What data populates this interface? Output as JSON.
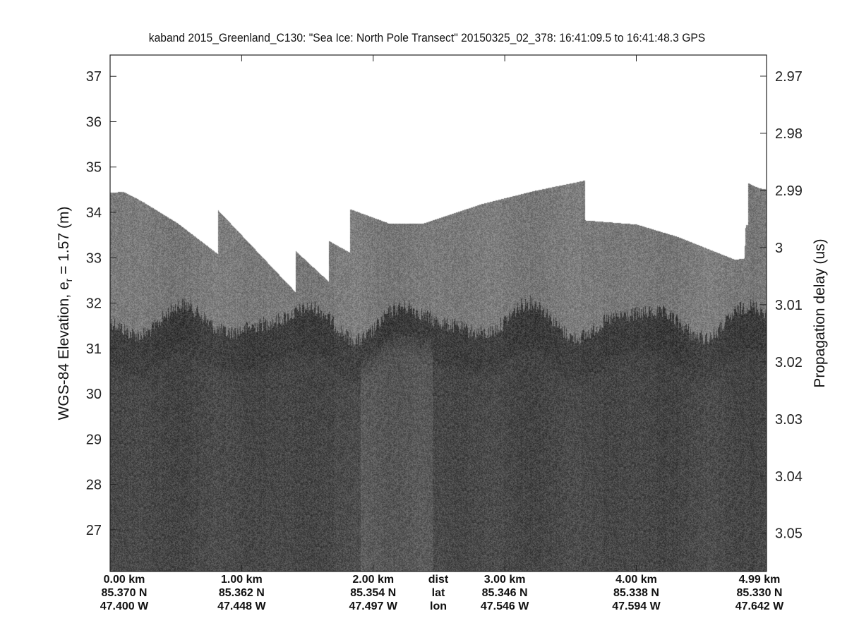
{
  "chart_data": {
    "type": "heatmap",
    "title": "kaband 2015_Greenland_C130: \"Sea Ice: North Pole Transect\"  20150325_02_378: 16:41:09.5 to 16:41:48.3 GPS",
    "ylabel_prefix": "WGS-84 Elevation, e",
    "ylabel_sub": "r",
    "ylabel_suffix": " = 1.57 (m)",
    "y2label": "Propagation delay (us)",
    "colormap": "gray",
    "xlim_km": [
      0,
      4.99
    ],
    "ylim": [
      26.08,
      37.47
    ],
    "yticks": [
      27,
      28,
      29,
      30,
      31,
      32,
      33,
      34,
      35,
      36,
      37
    ],
    "y2ticks": [
      "2.97",
      "2.98",
      "2.99",
      "3",
      "3.01",
      "3.02",
      "3.03",
      "3.04",
      "3.05"
    ],
    "y2tick_values": [
      2.97,
      2.98,
      2.99,
      3.0,
      3.01,
      3.02,
      3.03,
      3.04,
      3.05
    ],
    "y2lim": [
      2.9663,
      3.0567
    ],
    "x_labels": [
      {
        "km": 0.0,
        "dist": "0.00 km",
        "lat": "85.370 N",
        "lon": "47.400 W"
      },
      {
        "km": 1.0,
        "dist": "1.00 km",
        "lat": "85.362 N",
        "lon": "47.448 W"
      },
      {
        "km": 2.0,
        "dist": "2.00 km",
        "lat": "85.354 N",
        "lon": "47.497 W"
      },
      {
        "km": 3.0,
        "dist": "3.00 km",
        "lat": "85.346 N",
        "lon": "47.546 W"
      },
      {
        "km": 4.0,
        "dist": "4.00 km",
        "lat": "85.338 N",
        "lon": "47.594 W"
      },
      {
        "km": 4.99,
        "dist": "4.99 km",
        "lat": "85.330 N",
        "lon": "47.642 W"
      }
    ],
    "row_labels": {
      "dist": "dist",
      "lat": "lat",
      "lon": "lon"
    },
    "top_surface": [
      [
        0.0,
        34.44
      ],
      [
        0.1,
        34.46
      ],
      [
        0.24,
        34.25
      ],
      [
        0.51,
        33.77
      ],
      [
        0.82,
        33.08
      ],
      [
        0.82,
        34.05
      ],
      [
        1.41,
        32.24
      ],
      [
        1.41,
        33.15
      ],
      [
        1.66,
        32.48
      ],
      [
        1.66,
        33.38
      ],
      [
        1.82,
        33.12
      ],
      [
        1.82,
        34.08
      ],
      [
        2.12,
        33.76
      ],
      [
        2.38,
        33.76
      ],
      [
        2.81,
        34.18
      ],
      [
        3.24,
        34.49
      ],
      [
        3.61,
        34.71
      ],
      [
        3.61,
        33.83
      ],
      [
        4.0,
        33.74
      ],
      [
        4.32,
        33.46
      ],
      [
        4.75,
        32.96
      ],
      [
        4.82,
        32.99
      ],
      [
        4.83,
        33.73
      ],
      [
        4.85,
        33.73
      ],
      [
        4.85,
        34.65
      ],
      [
        4.93,
        34.54
      ],
      [
        4.99,
        34.51
      ]
    ],
    "dark_layer_top": 31.6
  }
}
